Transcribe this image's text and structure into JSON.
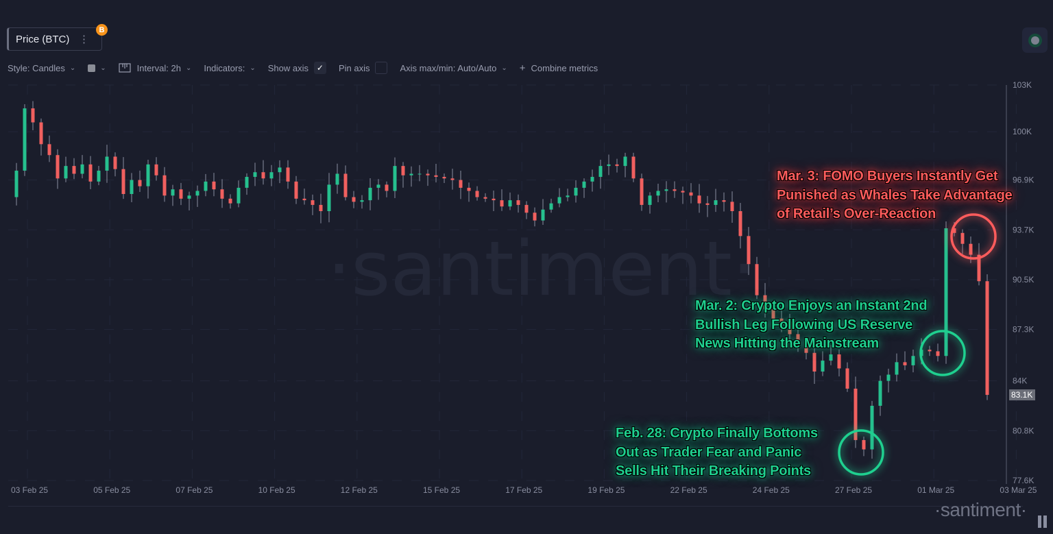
{
  "metric": {
    "label": "Price (BTC)",
    "menu_icon": "more-vertical-icon",
    "badge_icon": "bitcoin-icon",
    "badge_text": "B"
  },
  "toolbar": {
    "style": "Style: Candles",
    "interval": "Interval: 2h",
    "indicators": "Indicators:",
    "show_axis": "Show axis",
    "show_axis_checked": true,
    "pin_axis": "Pin axis",
    "pin_axis_checked": false,
    "axis_maxmin": "Axis max/min: Auto/Auto",
    "combine": "Combine metrics"
  },
  "watermark": "·santiment·",
  "logo": "·santiment·",
  "colors": {
    "up": "#26c08e",
    "down": "#f0605f",
    "background": "#1a1d2b",
    "annotation_red": "#ff5c5c",
    "annotation_green": "#1fd08f"
  },
  "chart_data": {
    "type": "candlestick",
    "interval": "2h",
    "ylim": [
      77.6,
      103
    ],
    "yunit": "K USD",
    "y_ticks": [
      "103K",
      "100K",
      "96.9K",
      "93.7K",
      "90.5K",
      "87.3K",
      "84K",
      "80.8K",
      "77.6K"
    ],
    "y_tick_values": [
      103,
      100,
      96.9,
      93.7,
      90.5,
      87.3,
      84,
      80.8,
      77.6
    ],
    "x_ticks": [
      "03 Feb 25",
      "05 Feb 25",
      "07 Feb 25",
      "10 Feb 25",
      "12 Feb 25",
      "15 Feb 25",
      "17 Feb 25",
      "19 Feb 25",
      "22 Feb 25",
      "24 Feb 25",
      "27 Feb 25",
      "01 Mar 25",
      "03 Mar 25"
    ],
    "last_price_label": "83.1K",
    "last_price": 83.1,
    "grid": true,
    "closes_approx_k": [
      95.8,
      97.5,
      101.5,
      100.6,
      99.2,
      98.5,
      97.0,
      97.8,
      97.3,
      97.9,
      96.8,
      97.5,
      98.4,
      97.6,
      96.0,
      96.9,
      96.5,
      97.9,
      97.2,
      95.9,
      96.3,
      95.7,
      95.9,
      96.2,
      96.8,
      96.3,
      95.7,
      95.4,
      96.4,
      97.1,
      97.4,
      97.0,
      97.4,
      97.7,
      96.8,
      95.7,
      95.6,
      95.3,
      94.9,
      96.6,
      97.3,
      95.8,
      95.5,
      95.6,
      96.4,
      96.6,
      96.2,
      97.8,
      97.2,
      97.3,
      97.3,
      97.2,
      97.1,
      97.0,
      96.9,
      96.4,
      96.2,
      95.8,
      95.7,
      95.6,
      95.2,
      95.6,
      95.3,
      94.8,
      94.3,
      95.0,
      95.4,
      95.8,
      95.9,
      96.4,
      96.8,
      97.1,
      97.8,
      97.9,
      97.8,
      98.4,
      97.0,
      95.3,
      95.9,
      96.2,
      96.3,
      96.2,
      96.1,
      95.9,
      95.4,
      95.3,
      95.6,
      95.5,
      94.9,
      93.3,
      91.5,
      89.5,
      88.6,
      88.0,
      87.8,
      87.0,
      86.5,
      85.8,
      84.6,
      85.3,
      85.7,
      84.8,
      83.5,
      80.2,
      79.6,
      82.4,
      84.0,
      84.4,
      85.2,
      85.0,
      85.6,
      86.0,
      85.9,
      85.6,
      93.8,
      93.5,
      92.8,
      92.1,
      90.4,
      83.1
    ],
    "annotations": [
      {
        "color": "red",
        "lines": [
          "Mar. 3: FOMO Buyers Instantly Get",
          "Punished as Whales Take Advantage",
          "of Retail’s Over-Reaction"
        ]
      },
      {
        "color": "green",
        "lines": [
          "Mar. 2: Crypto Enjoys an Instant 2nd",
          "Bullish Leg Following US Reserve",
          "News Hitting the Mainstream"
        ]
      },
      {
        "color": "green",
        "lines": [
          "Feb. 28: Crypto Finally Bottoms",
          "Out as Trader Fear and Panic",
          "Sells Hit Their Breaking Points"
        ]
      }
    ]
  }
}
